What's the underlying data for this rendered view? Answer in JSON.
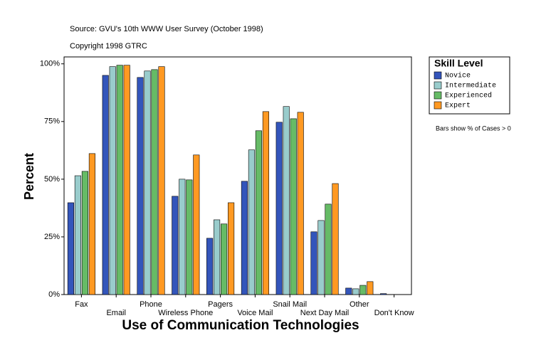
{
  "chart_data": {
    "type": "bar",
    "title": "Source: GVU's 10th WWW User Survey (October 1998)",
    "subtitle": "Copyright 1998 GTRC",
    "x_label": "Use of Communication Technologies",
    "y_label": "Percent",
    "legend_title": "Skill Level",
    "annotation": "Bars show % of Cases > 0",
    "categories": [
      "Fax",
      "Email",
      "Phone",
      "Wireless Phone",
      "Pagers",
      "Voice Mail",
      "Snail Mail",
      "Next Day Mail",
      "Other",
      "Don't Know"
    ],
    "series": [
      {
        "name": "Novice",
        "color": "#3355bb",
        "values": [
          39.8,
          95,
          94.1,
          42.6,
          24.4,
          49.1,
          74.7,
          27.2,
          2.8,
          0.4
        ]
      },
      {
        "name": "Intermediate",
        "color": "#99cccc",
        "values": [
          51.5,
          98.8,
          96.9,
          50,
          32.4,
          62.7,
          81.5,
          32.1,
          2.5,
          0
        ]
      },
      {
        "name": "Experienced",
        "color": "#66bb66",
        "values": [
          53.4,
          99.4,
          97.5,
          49.7,
          30.6,
          71,
          76.2,
          39.2,
          4,
          0
        ]
      },
      {
        "name": "Expert",
        "color": "#ff9922",
        "values": [
          61.1,
          99.4,
          98.8,
          60.5,
          39.8,
          79.3,
          79,
          48.1,
          5.6,
          0
        ]
      }
    ],
    "ylim": [
      0,
      103
    ],
    "yticks": [
      {
        "value": 0,
        "label": "0%"
      },
      {
        "value": 25,
        "label": "25%"
      },
      {
        "value": 50,
        "label": "50%"
      },
      {
        "value": 75,
        "label": "75%"
      },
      {
        "value": 100,
        "label": "100%"
      }
    ],
    "grid": false,
    "legend": "right"
  }
}
